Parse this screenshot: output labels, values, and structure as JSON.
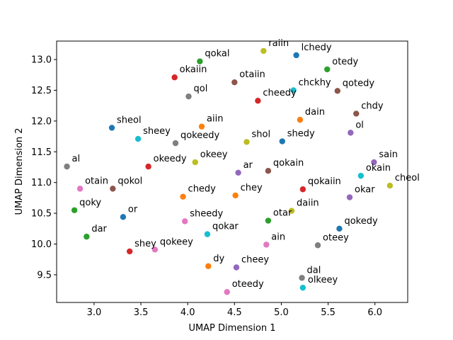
{
  "chart_data": {
    "type": "scatter",
    "title": "",
    "xlabel": "UMAP Dimension 1",
    "ylabel": "UMAP Dimension 2",
    "xlim": [
      2.6,
      6.35
    ],
    "ylim": [
      9.05,
      13.3
    ],
    "xticks": [
      "3.0",
      "3.5",
      "4.0",
      "4.5",
      "5.0",
      "5.5",
      "6.0"
    ],
    "yticks": [
      "9.5",
      "10.0",
      "10.5",
      "11.0",
      "11.5",
      "12.0",
      "12.5",
      "13.0"
    ],
    "grid": false,
    "legend": "none",
    "points": [
      {
        "label": "raiin",
        "x": 4.81,
        "y": 13.14,
        "color": "#bcbd22"
      },
      {
        "label": "lchedy",
        "x": 5.16,
        "y": 13.07,
        "color": "#1f77b4"
      },
      {
        "label": "qokal",
        "x": 4.13,
        "y": 12.97,
        "color": "#2ca02c"
      },
      {
        "label": "otedy",
        "x": 5.49,
        "y": 12.84,
        "color": "#2ca02c"
      },
      {
        "label": "okaiin",
        "x": 3.86,
        "y": 12.71,
        "color": "#d62728"
      },
      {
        "label": "otaiin",
        "x": 4.5,
        "y": 12.63,
        "color": "#8c564b"
      },
      {
        "label": "chckhy",
        "x": 5.13,
        "y": 12.5,
        "color": "#17becf"
      },
      {
        "label": "qotedy",
        "x": 5.6,
        "y": 12.49,
        "color": "#8c564b"
      },
      {
        "label": "qol",
        "x": 4.01,
        "y": 12.4,
        "color": "#7f7f7f"
      },
      {
        "label": "cheedy",
        "x": 4.75,
        "y": 12.33,
        "color": "#d62728"
      },
      {
        "label": "chdy",
        "x": 5.8,
        "y": 12.12,
        "color": "#8c564b"
      },
      {
        "label": "dain",
        "x": 5.2,
        "y": 12.02,
        "color": "#ff7f0e"
      },
      {
        "label": "sheol",
        "x": 3.19,
        "y": 11.89,
        "color": "#1f77b4"
      },
      {
        "label": "aiin",
        "x": 4.15,
        "y": 11.91,
        "color": "#ff7f0e"
      },
      {
        "label": "ol",
        "x": 5.74,
        "y": 11.81,
        "color": "#9467bd"
      },
      {
        "label": "sheey",
        "x": 3.47,
        "y": 11.71,
        "color": "#17becf"
      },
      {
        "label": "shol",
        "x": 4.63,
        "y": 11.66,
        "color": "#bcbd22"
      },
      {
        "label": "shedy",
        "x": 5.01,
        "y": 11.67,
        "color": "#1f77b4"
      },
      {
        "label": "qokeedy",
        "x": 3.87,
        "y": 11.64,
        "color": "#7f7f7f"
      },
      {
        "label": "sain",
        "x": 5.99,
        "y": 11.33,
        "color": "#9467bd"
      },
      {
        "label": "okeey",
        "x": 4.08,
        "y": 11.33,
        "color": "#bcbd22"
      },
      {
        "label": "al",
        "x": 2.71,
        "y": 11.26,
        "color": "#7f7f7f"
      },
      {
        "label": "okeedy",
        "x": 3.58,
        "y": 11.26,
        "color": "#d62728"
      },
      {
        "label": "ar",
        "x": 4.54,
        "y": 11.16,
        "color": "#9467bd"
      },
      {
        "label": "qokain",
        "x": 4.86,
        "y": 11.19,
        "color": "#8c564b"
      },
      {
        "label": "okain",
        "x": 5.85,
        "y": 11.11,
        "color": "#17becf"
      },
      {
        "label": "cheol",
        "x": 6.16,
        "y": 10.95,
        "color": "#bcbd22"
      },
      {
        "label": "otain",
        "x": 2.85,
        "y": 10.9,
        "color": "#e377c2"
      },
      {
        "label": "qokol",
        "x": 3.2,
        "y": 10.9,
        "color": "#8c564b"
      },
      {
        "label": "qokaiin",
        "x": 5.23,
        "y": 10.89,
        "color": "#d62728"
      },
      {
        "label": "chedy",
        "x": 3.95,
        "y": 10.77,
        "color": "#ff7f0e"
      },
      {
        "label": "chey",
        "x": 4.51,
        "y": 10.79,
        "color": "#ff7f0e"
      },
      {
        "label": "okar",
        "x": 5.73,
        "y": 10.76,
        "color": "#9467bd"
      },
      {
        "label": "qoky",
        "x": 2.79,
        "y": 10.55,
        "color": "#2ca02c"
      },
      {
        "label": "daiin",
        "x": 5.11,
        "y": 10.54,
        "color": "#bcbd22"
      },
      {
        "label": "or",
        "x": 3.31,
        "y": 10.44,
        "color": "#1f77b4"
      },
      {
        "label": "otar",
        "x": 4.86,
        "y": 10.38,
        "color": "#2ca02c"
      },
      {
        "label": "sheedy",
        "x": 3.97,
        "y": 10.37,
        "color": "#e377c2"
      },
      {
        "label": "qokedy",
        "x": 5.62,
        "y": 10.25,
        "color": "#1f77b4"
      },
      {
        "label": "qokar",
        "x": 4.21,
        "y": 10.16,
        "color": "#17becf"
      },
      {
        "label": "dar",
        "x": 2.92,
        "y": 10.12,
        "color": "#2ca02c"
      },
      {
        "label": "ain",
        "x": 4.84,
        "y": 9.99,
        "color": "#e377c2"
      },
      {
        "label": "oteey",
        "x": 5.39,
        "y": 9.98,
        "color": "#7f7f7f"
      },
      {
        "label": "qokeey",
        "x": 3.65,
        "y": 9.91,
        "color": "#e377c2"
      },
      {
        "label": "shey",
        "x": 3.38,
        "y": 9.88,
        "color": "#d62728"
      },
      {
        "label": "dy",
        "x": 4.22,
        "y": 9.64,
        "color": "#ff7f0e"
      },
      {
        "label": "cheey",
        "x": 4.52,
        "y": 9.62,
        "color": "#9467bd"
      },
      {
        "label": "dal",
        "x": 5.22,
        "y": 9.45,
        "color": "#7f7f7f"
      },
      {
        "label": "olkeey",
        "x": 5.23,
        "y": 9.29,
        "color": "#17becf"
      },
      {
        "label": "oteedy",
        "x": 4.42,
        "y": 9.22,
        "color": "#e377c2"
      }
    ]
  }
}
